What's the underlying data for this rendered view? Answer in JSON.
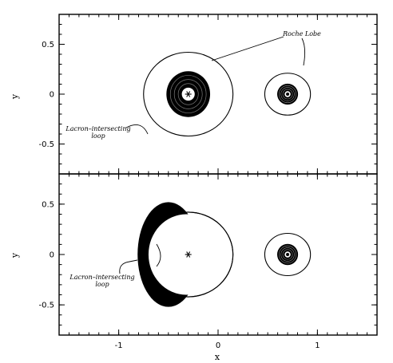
{
  "chart_data": [
    {
      "type": "scatter",
      "panel": "top",
      "xlabel": "",
      "ylabel": "y",
      "xlim": [
        -1.6,
        1.6
      ],
      "ylim": [
        -0.8,
        0.8
      ],
      "yticks": [
        {
          "value": 0.5,
          "label": "0.5"
        },
        {
          "value": 0,
          "label": "0"
        },
        {
          "value": -0.5,
          "label": "-0.5"
        }
      ],
      "xticks": [
        {
          "value": -1,
          "label": ""
        },
        {
          "value": 0,
          "label": ""
        },
        {
          "value": 1,
          "label": ""
        }
      ],
      "stars": [
        {
          "x": -0.3,
          "y": 0
        }
      ],
      "disks": [
        {
          "name": "primary-disk",
          "cx": -0.3,
          "cy": 0,
          "outer_rx": 0.22,
          "outer_ry": 0.23,
          "inner_r": 0.065
        },
        {
          "name": "secondary-disk",
          "cx": 0.7,
          "cy": 0,
          "outer_rx": 0.105,
          "outer_ry": 0.105,
          "inner_r": 0.03
        }
      ],
      "roche_lobes": [
        {
          "cx": -0.3,
          "cy": 0,
          "rx": 0.45,
          "ry": 0.42
        },
        {
          "cx": 0.7,
          "cy": 0,
          "rx": 0.23,
          "ry": 0.21
        }
      ],
      "annotations": [
        {
          "name": "roche-lobe",
          "lines": [
            "Roche Lobe"
          ],
          "x": 0.87,
          "y": 0.64
        },
        {
          "name": "non-intersecting-loop",
          "lines": [
            "Lacron–intersecting",
            "loop"
          ],
          "x": -1.2,
          "y": -0.35
        }
      ]
    },
    {
      "type": "scatter",
      "panel": "bottom",
      "xlabel": "x",
      "ylabel": "y",
      "xlim": [
        -1.6,
        1.6
      ],
      "ylim": [
        -0.8,
        0.8
      ],
      "yticks": [
        {
          "value": 0.5,
          "label": "0.5"
        },
        {
          "value": 0,
          "label": "0"
        },
        {
          "value": -0.5,
          "label": "-0.5"
        }
      ],
      "xticks": [
        {
          "value": -1,
          "label": "-1"
        },
        {
          "value": 0,
          "label": "0"
        },
        {
          "value": 1,
          "label": "1"
        }
      ],
      "stars": [
        {
          "x": -0.3,
          "y": 0
        }
      ],
      "disks": [
        {
          "name": "primary-disk",
          "cx": -0.5,
          "cy": 0,
          "outer_rx": 0.31,
          "outer_ry": 0.52,
          "inner_r": 0
        },
        {
          "name": "secondary-disk",
          "cx": 0.7,
          "cy": 0,
          "outer_rx": 0.105,
          "outer_ry": 0.105,
          "inner_r": 0.03
        }
      ],
      "roche_lobes": [
        {
          "cx": -0.3,
          "cy": 0,
          "rx": 0.45,
          "ry": 0.42
        },
        {
          "cx": 0.7,
          "cy": 0,
          "rx": 0.23,
          "ry": 0.21
        }
      ],
      "annotations": [
        {
          "name": "non-intersecting-loop",
          "lines": [
            "Lacron–intersecting",
            "loop"
          ],
          "x": -1.2,
          "y": -0.25
        }
      ]
    }
  ]
}
